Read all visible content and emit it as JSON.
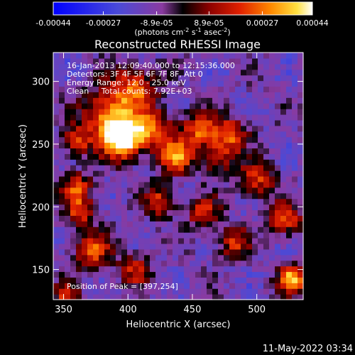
{
  "chart_data": {
    "type": "heatmap",
    "title": "Reconstructed RHESSI Image",
    "xlabel": "Heliocentric X (arcsec)",
    "ylabel": "Heliocentric Y (arcsec)",
    "xlim": [
      342,
      536
    ],
    "ylim": [
      126,
      323
    ],
    "x_ticks": [
      350,
      400,
      450,
      500
    ],
    "y_ticks": [
      150,
      200,
      250,
      300
    ],
    "colorbar": {
      "colormap": "rhessi-heat",
      "range": [
        -0.00044,
        0.00044
      ],
      "tick_labels": [
        "-0.00044",
        "-0.00027",
        "-8.9e-05",
        "8.9e-05",
        "0.00027",
        "0.00044"
      ],
      "label_prefix": "(photons cm",
      "label_exp1": "-2",
      "label_mid": " s",
      "label_exp2": "-1",
      "label_mid2": " asec",
      "label_exp3": "-2",
      "label_suffix": ")"
    },
    "annotations": [
      "16-Jan-2013 12:09:40.000 to 12:15:36.000",
      "Detectors: 3F 4F 5F 6F 7F 8F, Att 0",
      "Energy Range: 12.0 - 25.0 keV",
      "Clean     Total counts: 7.92E+03"
    ],
    "peak_label": "Position of Peak = [397,254]",
    "peak": [
      397,
      254
    ],
    "sources": [
      {
        "x": 397,
        "y": 254,
        "flux": 0.00044,
        "sigma": 11
      },
      {
        "x": 385,
        "y": 272,
        "flux": 0.0003,
        "sigma": 14
      },
      {
        "x": 405,
        "y": 295,
        "flux": 0.00022,
        "sigma": 13
      },
      {
        "x": 420,
        "y": 262,
        "flux": 0.00025,
        "sigma": 10
      },
      {
        "x": 437,
        "y": 240,
        "flux": 0.0003,
        "sigma": 9
      },
      {
        "x": 455,
        "y": 262,
        "flux": 0.00024,
        "sigma": 10
      },
      {
        "x": 480,
        "y": 258,
        "flux": 0.00022,
        "sigma": 9
      },
      {
        "x": 470,
        "y": 240,
        "flux": 0.00018,
        "sigma": 9
      },
      {
        "x": 360,
        "y": 252,
        "flux": 0.00018,
        "sigma": 8
      },
      {
        "x": 360,
        "y": 215,
        "flux": 0.0002,
        "sigma": 9
      },
      {
        "x": 372,
        "y": 165,
        "flux": 0.00022,
        "sigma": 10
      },
      {
        "x": 363,
        "y": 195,
        "flux": 0.00018,
        "sigma": 8
      },
      {
        "x": 425,
        "y": 205,
        "flux": 0.00018,
        "sigma": 9
      },
      {
        "x": 458,
        "y": 196,
        "flux": 0.00016,
        "sigma": 9
      },
      {
        "x": 500,
        "y": 222,
        "flux": 0.0002,
        "sigma": 10
      },
      {
        "x": 522,
        "y": 190,
        "flux": 0.00022,
        "sigma": 9
      },
      {
        "x": 482,
        "y": 172,
        "flux": 0.00018,
        "sigma": 9
      },
      {
        "x": 528,
        "y": 142,
        "flux": 0.00036,
        "sigma": 8
      },
      {
        "x": 405,
        "y": 150,
        "flux": 0.00014,
        "sigma": 9
      },
      {
        "x": 352,
        "y": 130,
        "flux": 0.00016,
        "sigma": 7
      }
    ]
  },
  "footer": {
    "timestamp": "11-May-2022 03:34"
  }
}
